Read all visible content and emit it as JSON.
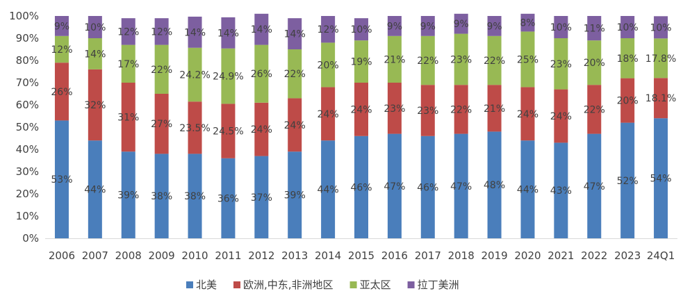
{
  "chart_data": {
    "type": "bar",
    "stacked": true,
    "categories": [
      "2006",
      "2007",
      "2008",
      "2009",
      "2010",
      "2011",
      "2012",
      "2013",
      "2014",
      "2015",
      "2016",
      "2017",
      "2018",
      "2019",
      "2020",
      "2021",
      "2022",
      "2023",
      "24Q1"
    ],
    "ylim": [
      0,
      100
    ],
    "yticks": [
      "0%",
      "10%",
      "20%",
      "30%",
      "40%",
      "50%",
      "60%",
      "70%",
      "80%",
      "90%",
      "100%"
    ],
    "grid": false,
    "legend_position": "bottom",
    "series": [
      {
        "name": "北美",
        "color": "#4a7ebb",
        "values": [
          53,
          44,
          39,
          38,
          38,
          36,
          37,
          39,
          44,
          46,
          47,
          46,
          47,
          48,
          44,
          43,
          47,
          52,
          54
        ],
        "labels": [
          "53%",
          "44%",
          "39%",
          "38%",
          "38%",
          "36%",
          "37%",
          "39%",
          "44%",
          "46%",
          "47%",
          "46%",
          "47%",
          "48%",
          "44%",
          "43%",
          "47%",
          "52%",
          "54%"
        ]
      },
      {
        "name": "欧洲,中东,非洲地区",
        "color": "#be4b48",
        "values": [
          26,
          32,
          31,
          27,
          23.5,
          24.5,
          24,
          24,
          24,
          24,
          23,
          23,
          22,
          21,
          24,
          24,
          22,
          20,
          18.1
        ],
        "labels": [
          "26%",
          "32%",
          "31%",
          "27%",
          "23.5%",
          "24.5%",
          "24%",
          "24%",
          "24%",
          "24%",
          "23%",
          "23%",
          "22%",
          "21%",
          "24%",
          "24%",
          "22%",
          "20%",
          "18.1%"
        ]
      },
      {
        "name": "亚太区",
        "color": "#98b954",
        "values": [
          12,
          14,
          17,
          22,
          24.2,
          24.9,
          26,
          22,
          20,
          19,
          21,
          22,
          23,
          22,
          25,
          23,
          20,
          18,
          17.8
        ],
        "labels": [
          "12%",
          "14%",
          "17%",
          "22%",
          "24.2%",
          "24.9%",
          "26%",
          "22%",
          "20%",
          "19%",
          "21%",
          "22%",
          "23%",
          "22%",
          "25%",
          "23%",
          "20%",
          "18%",
          "17.8%"
        ]
      },
      {
        "name": "拉丁美洲",
        "color": "#7d5fa0",
        "values": [
          9,
          10,
          12,
          12,
          14,
          14,
          14,
          14,
          12,
          10,
          9,
          9,
          9,
          9,
          8,
          10,
          11,
          10,
          10
        ],
        "labels": [
          "9%",
          "10%",
          "12%",
          "12%",
          "14%",
          "14%",
          "14%",
          "14%",
          "12%",
          "10%",
          "9%",
          "9%",
          "9%",
          "9%",
          "8%",
          "10%",
          "11%",
          "10%",
          "10%"
        ]
      }
    ]
  }
}
